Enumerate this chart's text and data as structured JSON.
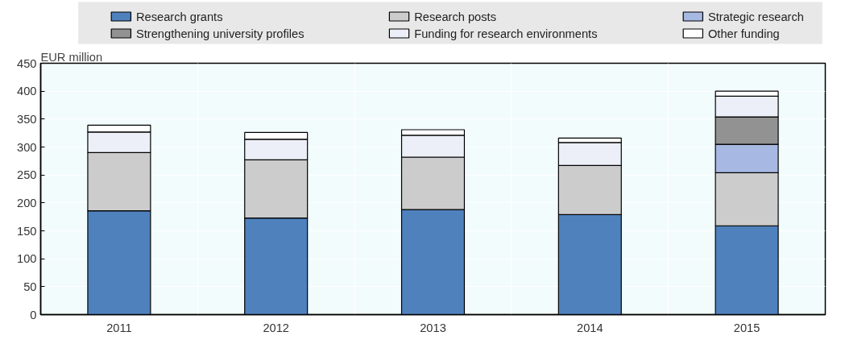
{
  "chart_data": {
    "type": "bar",
    "stacked": true,
    "ylabel": "EUR million",
    "categories": [
      "2011",
      "2012",
      "2013",
      "2014",
      "2015"
    ],
    "series": [
      {
        "name": "Research grants",
        "color": "#4f81bd",
        "values": [
          186,
          173,
          188,
          179,
          159
        ]
      },
      {
        "name": "Research posts",
        "color": "#cccccc",
        "values": [
          104,
          104,
          94,
          88,
          95
        ]
      },
      {
        "name": "Strategic research",
        "color": "#a7b9e3",
        "values": [
          null,
          null,
          null,
          null,
          51
        ]
      },
      {
        "name": "Strengthening university profiles",
        "color": "#929292",
        "values": [
          null,
          null,
          null,
          null,
          49
        ]
      },
      {
        "name": "Funding for research environments",
        "color": "#eceff7",
        "values": [
          37,
          37,
          39,
          41,
          37
        ]
      },
      {
        "name": "Other funding",
        "color": "#ffffff",
        "values": [
          12,
          12,
          10,
          8,
          9
        ]
      }
    ],
    "ylim": [
      0,
      450
    ],
    "yticks": [
      0,
      50,
      100,
      150,
      200,
      250,
      300,
      350,
      400,
      450
    ],
    "grid": true,
    "legend": "top"
  }
}
